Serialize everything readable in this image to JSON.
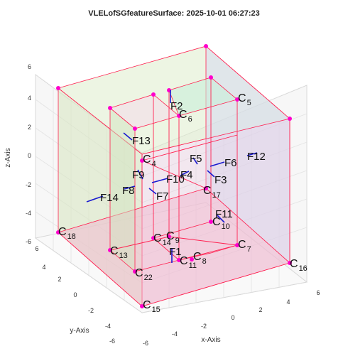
{
  "chart_data": {
    "type": "3d-wireframe",
    "title": "VLELofSGfeatureSurface: 2025-10-01 06:27:23",
    "xlabel": "x-Axis",
    "ylabel": "y-Axis",
    "zlabel": "z-Axis",
    "xlim": [
      -6,
      6
    ],
    "ylim": [
      -6,
      6
    ],
    "zlim": [
      -6,
      6
    ],
    "grid": true,
    "x_ticks": [
      "-6",
      "-4",
      "-2",
      "0",
      "2",
      "4",
      "6"
    ],
    "y_ticks": [
      "-6",
      "-4",
      "-2",
      "0",
      "2",
      "4",
      "6"
    ],
    "z_ticks": [
      "-6",
      "-4",
      "-2",
      "0",
      "2",
      "4",
      "6"
    ],
    "colors": {
      "edge": "#ff2050",
      "vertex": "#ff00cc",
      "normal": "#1a1ad0"
    },
    "corner_labels": [
      {
        "main": "C",
        "sub": "4"
      },
      {
        "main": "C",
        "sub": "5"
      },
      {
        "main": "C",
        "sub": "6"
      },
      {
        "main": "C",
        "sub": "7"
      },
      {
        "main": "C",
        "sub": "8"
      },
      {
        "main": "C",
        "sub": "9"
      },
      {
        "main": "C",
        "sub": "10"
      },
      {
        "main": "C",
        "sub": "11"
      },
      {
        "main": "C",
        "sub": "13"
      },
      {
        "main": "C",
        "sub": "14"
      },
      {
        "main": "C",
        "sub": "15"
      },
      {
        "main": "C",
        "sub": "16"
      },
      {
        "main": "C",
        "sub": "17"
      },
      {
        "main": "C",
        "sub": "18"
      },
      {
        "main": "C",
        "sub": "22"
      }
    ],
    "face_labels": [
      "F1",
      "F2",
      "F3",
      "F4",
      "F5",
      "F6",
      "F7",
      "F8",
      "F9",
      "F10",
      "F11",
      "F12",
      "F13",
      "F14"
    ]
  }
}
